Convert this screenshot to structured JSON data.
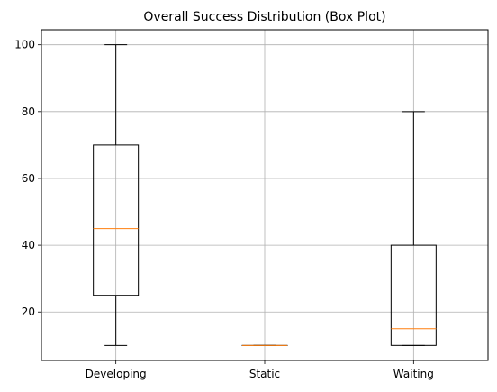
{
  "chart_data": {
    "type": "box",
    "title": "Overall Success Distribution (Box Plot)",
    "xlabel": "",
    "ylabel": "",
    "categories": [
      "Developing",
      "Static",
      "Waiting"
    ],
    "boxes": [
      {
        "min": 10,
        "q1": 25,
        "median": 45,
        "q3": 70,
        "max": 100
      },
      {
        "min": 10,
        "q1": 10,
        "median": 10,
        "q3": 10,
        "max": 10
      },
      {
        "min": 10,
        "q1": 10,
        "median": 15,
        "q3": 40,
        "max": 80
      }
    ],
    "ylim": [
      5.5,
      104.5
    ],
    "yticks": [
      20,
      40,
      60,
      80,
      100
    ],
    "grid": true,
    "colors": {
      "box": "#000000",
      "median": "#ff7f0e",
      "grid": "#b0b0b0"
    }
  }
}
